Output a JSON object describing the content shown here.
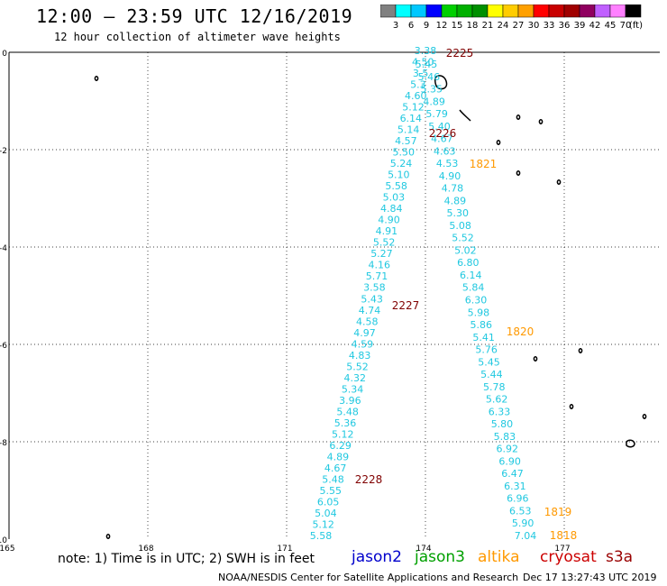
{
  "title": "12:00 – 23:59 UTC 12/16/2019",
  "subtitle": "12 hour collection of altimeter wave heights",
  "scale": {
    "unit": "(ft)",
    "levels": [
      {
        "label": "3",
        "color": "#808080"
      },
      {
        "label": "6",
        "color": "#00ffff"
      },
      {
        "label": "9",
        "color": "#00c8ff"
      },
      {
        "label": "12",
        "color": "#0000ff"
      },
      {
        "label": "15",
        "color": "#00d000"
      },
      {
        "label": "18",
        "color": "#00b000"
      },
      {
        "label": "21",
        "color": "#009000"
      },
      {
        "label": "24",
        "color": "#ffff00"
      },
      {
        "label": "27",
        "color": "#ffcc00"
      },
      {
        "label": "30",
        "color": "#ffa000"
      },
      {
        "label": "33",
        "color": "#ff0000"
      },
      {
        "label": "36",
        "color": "#c80000"
      },
      {
        "label": "39",
        "color": "#a00000"
      },
      {
        "label": "42",
        "color": "#900060"
      },
      {
        "label": "45",
        "color": "#c060ff"
      },
      {
        "label": "70",
        "color": "#ff80ff"
      },
      {
        "label": "",
        "color": "#000000"
      }
    ]
  },
  "lon_labels": [
    "165",
    "168",
    "171",
    "174",
    "177"
  ],
  "lat_labels": [
    "0",
    "-2",
    "-4",
    "-6",
    "-8",
    "-10"
  ],
  "track_times": [
    {
      "label": "2225",
      "color": "#800000"
    },
    {
      "label": "2226",
      "color": "#800000"
    },
    {
      "label": "2227",
      "color": "#800000"
    },
    {
      "label": "2228",
      "color": "#800000"
    },
    {
      "label": "1821",
      "color": "#ff9900"
    },
    {
      "label": "1820",
      "color": "#ff9900"
    },
    {
      "label": "1819",
      "color": "#ff9900"
    },
    {
      "label": "1818",
      "color": "#ff9900"
    }
  ],
  "left_track_values": [
    "3.38",
    "4.50",
    "3.5",
    "5.3",
    "4.60",
    "5.12",
    "6.14",
    "5.14",
    "4.57",
    "5.50",
    "5.24",
    "5.10",
    "5.58",
    "5.03",
    "4.84",
    "4.90",
    "4.91",
    "5.52",
    "5.27",
    "4.16",
    "5.71",
    "3.58",
    "5.43",
    "4.74",
    "4.58",
    "4.97",
    "4.59",
    "4.83",
    "5.52",
    "4.32",
    "5.34",
    "3.96",
    "5.48",
    "5.36",
    "5.12",
    "6.29",
    "4.89",
    "4.67",
    "5.48",
    "5.55",
    "6.05",
    "5.04",
    "5.12",
    "5.58"
  ],
  "right_track_values": [
    "5.45",
    "5.46",
    "5.35",
    "4.89",
    "5.79",
    "5.40",
    "4.67",
    "4.63",
    "4.53",
    "4.90",
    "4.78",
    "4.89",
    "5.30",
    "5.08",
    "5.52",
    "5.02",
    "6.80",
    "6.14",
    "5.84",
    "6.30",
    "5.98",
    "5.86",
    "5.41",
    "5.76",
    "5.45",
    "5.44",
    "5.78",
    "5.62",
    "6.33",
    "5.80",
    "5.83",
    "6.92",
    "6.90",
    "6.47",
    "6.31",
    "6.96",
    "6.53",
    "5.90",
    "7.04"
  ],
  "footer": {
    "note": "note: 1) Time is in UTC; 2) SWH is in feet",
    "satellites": [
      {
        "label": "jason2",
        "color": "#0000cc"
      },
      {
        "label": "jason3",
        "color": "#00a000"
      },
      {
        "label": "altika",
        "color": "#ff9900"
      },
      {
        "label": "cryosat",
        "color": "#cc0000"
      },
      {
        "label": "s3a",
        "color": "#990000"
      }
    ],
    "credit": "NOAA/NESDIS Center for Satellite Applications and Research",
    "timestamp": "Dec 17 13:27:43 UTC 2019"
  },
  "colors": {
    "track_values": "#20c8e0",
    "grid": "#000000"
  }
}
